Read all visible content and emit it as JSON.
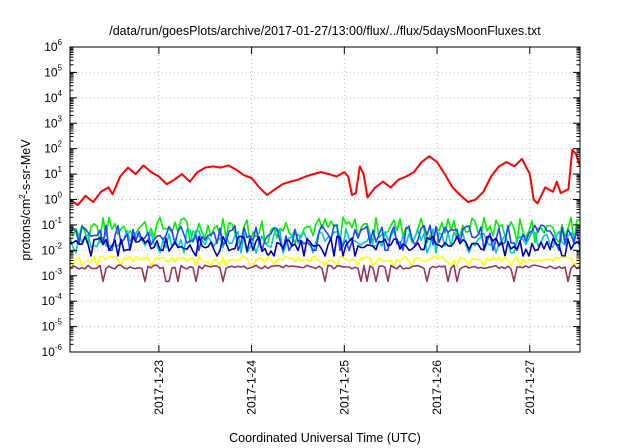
{
  "chart_data": {
    "type": "line",
    "title": "/data/run/goesPlots/archive/2017-01-27/13:00/flux/../flux/5daysMoonFluxes.txt",
    "xlabel": "Coordinated Universal Time (UTC)",
    "ylabel_parts": {
      "pre": "protons/cm",
      "sup": "2",
      "post": "-s-sr-MeV"
    },
    "yscale": "log",
    "ylim_exp": [
      -6,
      6
    ],
    "y_tick_labels": [
      {
        "base": "10",
        "exp": "-6"
      },
      {
        "base": "10",
        "exp": "-5"
      },
      {
        "base": "10",
        "exp": "-4"
      },
      {
        "base": "10",
        "exp": "-3"
      },
      {
        "base": "10",
        "exp": "-2"
      },
      {
        "base": "10",
        "exp": "-1"
      },
      {
        "base": "10",
        "exp": "0"
      },
      {
        "base": "10",
        "exp": "1"
      },
      {
        "base": "10",
        "exp": "2"
      },
      {
        "base": "10",
        "exp": "3"
      },
      {
        "base": "10",
        "exp": "4"
      },
      {
        "base": "10",
        "exp": "5"
      },
      {
        "base": "10",
        "exp": "6"
      }
    ],
    "xlim": [
      "2017-01-22T01:00",
      "2017-01-27T13:00"
    ],
    "x_ticks": [
      "2017-1-23",
      "2017-1-24",
      "2017-1-25",
      "2017-1-26",
      "2017-1-27"
    ],
    "grid": true,
    "series": [
      {
        "color": "#ff0000",
        "points": [
          [
            "2017-01-22T01:00",
            1.0
          ],
          [
            "2017-01-22T03:00",
            0.6
          ],
          [
            "2017-01-22T05:00",
            1.4
          ],
          [
            "2017-01-22T07:00",
            0.8
          ],
          [
            "2017-01-22T09:00",
            2.0
          ],
          [
            "2017-01-22T11:00",
            3.0
          ],
          [
            "2017-01-22T12:00",
            1.6
          ],
          [
            "2017-01-22T14:00",
            8.0
          ],
          [
            "2017-01-22T16:00",
            18.0
          ],
          [
            "2017-01-22T18:00",
            10.0
          ],
          [
            "2017-01-22T20:00",
            22.0
          ],
          [
            "2017-01-22T22:00",
            12.0
          ],
          [
            "2017-01-23T00:00",
            8.0
          ],
          [
            "2017-01-23T02:00",
            4.0
          ],
          [
            "2017-01-23T04:00",
            6.0
          ],
          [
            "2017-01-23T06:00",
            10.0
          ],
          [
            "2017-01-23T08:00",
            5.0
          ],
          [
            "2017-01-23T10:00",
            12.0
          ],
          [
            "2017-01-23T12:00",
            18.0
          ],
          [
            "2017-01-23T14:00",
            20.0
          ],
          [
            "2017-01-23T16:00",
            18.0
          ],
          [
            "2017-01-23T18:00",
            22.0
          ],
          [
            "2017-01-23T20:00",
            15.0
          ],
          [
            "2017-01-23T22:00",
            9.0
          ],
          [
            "2017-01-24T00:00",
            7.0
          ],
          [
            "2017-01-24T02:00",
            3.0
          ],
          [
            "2017-01-24T04:00",
            1.5
          ],
          [
            "2017-01-24T06:00",
            2.5
          ],
          [
            "2017-01-24T08:00",
            4.0
          ],
          [
            "2017-01-24T10:00",
            5.0
          ],
          [
            "2017-01-24T12:00",
            6.0
          ],
          [
            "2017-01-24T14:00",
            8.0
          ],
          [
            "2017-01-24T16:00",
            10.0
          ],
          [
            "2017-01-24T18:00",
            12.0
          ],
          [
            "2017-01-24T20:00",
            10.0
          ],
          [
            "2017-01-24T22:00",
            8.0
          ],
          [
            "2017-01-25T00:00",
            12.0
          ],
          [
            "2017-01-25T01:00",
            8.0
          ],
          [
            "2017-01-25T02:00",
            1.5
          ],
          [
            "2017-01-25T03:00",
            1.8
          ],
          [
            "2017-01-25T04:00",
            20.0
          ],
          [
            "2017-01-25T05:00",
            10.0
          ],
          [
            "2017-01-25T06:00",
            1.2
          ],
          [
            "2017-01-25T08:00",
            3.0
          ],
          [
            "2017-01-25T10:00",
            5.0
          ],
          [
            "2017-01-25T12:00",
            3.0
          ],
          [
            "2017-01-25T14:00",
            6.0
          ],
          [
            "2017-01-25T16:00",
            8.0
          ],
          [
            "2017-01-25T18:00",
            12.0
          ],
          [
            "2017-01-25T20:00",
            30.0
          ],
          [
            "2017-01-25T22:00",
            50.0
          ],
          [
            "2017-01-26T00:00",
            30.0
          ],
          [
            "2017-01-26T02:00",
            10.0
          ],
          [
            "2017-01-26T04:00",
            3.0
          ],
          [
            "2017-01-26T06:00",
            1.5
          ],
          [
            "2017-01-26T08:00",
            0.8
          ],
          [
            "2017-01-26T10:00",
            1.0
          ],
          [
            "2017-01-26T12:00",
            2.0
          ],
          [
            "2017-01-26T14:00",
            8.0
          ],
          [
            "2017-01-26T16:00",
            20.0
          ],
          [
            "2017-01-26T18:00",
            30.0
          ],
          [
            "2017-01-26T20:00",
            20.0
          ],
          [
            "2017-01-26T22:00",
            40.0
          ],
          [
            "2017-01-27T00:00",
            10.0
          ],
          [
            "2017-01-27T01:00",
            1.0
          ],
          [
            "2017-01-27T02:00",
            0.7
          ],
          [
            "2017-01-27T04:00",
            3.0
          ],
          [
            "2017-01-27T06:00",
            2.0
          ],
          [
            "2017-01-27T07:00",
            5.0
          ],
          [
            "2017-01-27T08:00",
            1.8
          ],
          [
            "2017-01-27T10:00",
            2.5
          ],
          [
            "2017-01-27T11:00",
            90.0
          ],
          [
            "2017-01-27T12:00",
            60.0
          ],
          [
            "2017-01-27T13:00",
            20.0
          ]
        ]
      },
      {
        "color": "#00ee00",
        "level": 0.08,
        "jitter": 0.85,
        "dip": 0.02
      },
      {
        "color": "#00cccc",
        "level": 0.03,
        "jitter": 0.75,
        "dip": 0.008
      },
      {
        "color": "#2244ff",
        "level": 0.04,
        "jitter": 0.8,
        "dip": 0.01
      },
      {
        "color": "#0000aa",
        "level": 0.018,
        "jitter": 0.6,
        "dip": 0.006
      },
      {
        "color": "#ffff00",
        "level": 0.0045,
        "jitter": 0.25,
        "dip": 0.0025
      },
      {
        "color": "#993366",
        "level": 0.0022,
        "jitter": 0.15,
        "dip": 0.0006
      }
    ]
  }
}
